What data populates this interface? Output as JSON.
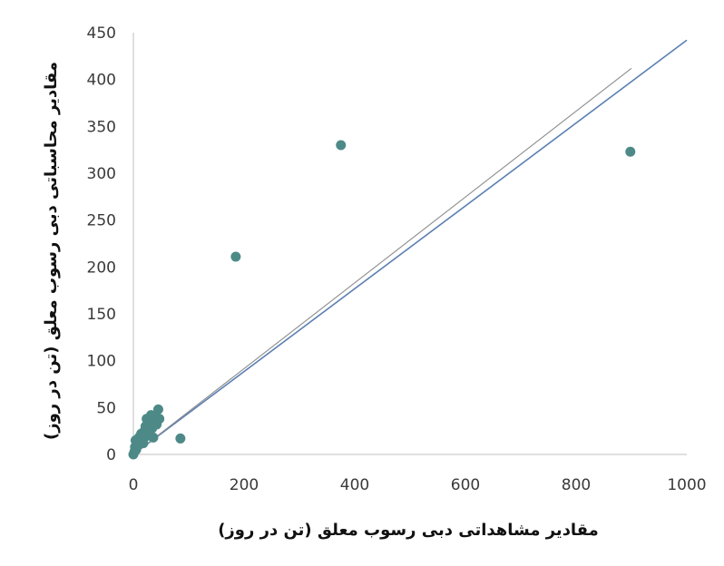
{
  "chart_data": {
    "type": "scatter",
    "xlabel": "مقادیر مشاهداتی دبی رسوب معلق (تن در روز)",
    "ylabel": "مقادیر محاسباتی دبی رسوب معلق (تن در روز)",
    "xlim": [
      0,
      1000
    ],
    "ylim": [
      0,
      450
    ],
    "x_ticks": [
      "0",
      "200",
      "400",
      "600",
      "800",
      "1000"
    ],
    "y_ticks": [
      "0",
      "50",
      "100",
      "150",
      "200",
      "250",
      "300",
      "350",
      "400",
      "450"
    ],
    "grid": false,
    "legend": "none",
    "series": [
      {
        "values": [
          {
            "x": 0,
            "y": 0
          },
          {
            "x": 2,
            "y": 3
          },
          {
            "x": 3,
            "y": 8
          },
          {
            "x": 4,
            "y": 15
          },
          {
            "x": 5,
            "y": 5
          },
          {
            "x": 6,
            "y": 12
          },
          {
            "x": 8,
            "y": 10
          },
          {
            "x": 10,
            "y": 18
          },
          {
            "x": 12,
            "y": 14
          },
          {
            "x": 14,
            "y": 22
          },
          {
            "x": 16,
            "y": 17
          },
          {
            "x": 18,
            "y": 12
          },
          {
            "x": 20,
            "y": 25
          },
          {
            "x": 22,
            "y": 30
          },
          {
            "x": 24,
            "y": 38
          },
          {
            "x": 26,
            "y": 20
          },
          {
            "x": 28,
            "y": 27
          },
          {
            "x": 30,
            "y": 33
          },
          {
            "x": 32,
            "y": 42
          },
          {
            "x": 34,
            "y": 28
          },
          {
            "x": 36,
            "y": 18
          },
          {
            "x": 38,
            "y": 36
          },
          {
            "x": 40,
            "y": 40
          },
          {
            "x": 42,
            "y": 32
          },
          {
            "x": 45,
            "y": 48
          },
          {
            "x": 47,
            "y": 38
          },
          {
            "x": 85,
            "y": 17
          },
          {
            "x": 185,
            "y": 211
          },
          {
            "x": 375,
            "y": 330
          },
          {
            "x": 898,
            "y": 323
          }
        ]
      }
    ],
    "lines": [
      {
        "x1": 0,
        "y1": 0,
        "x2": 1000,
        "y2": 442
      },
      {
        "x1": 0,
        "y1": 0,
        "x2": 900,
        "y2": 412
      }
    ],
    "colors": {
      "points": "#4d8a87",
      "fit_line": "#5b7fb3",
      "reference_line": "#8c8c8c",
      "axis": "#bfbfbf"
    }
  }
}
